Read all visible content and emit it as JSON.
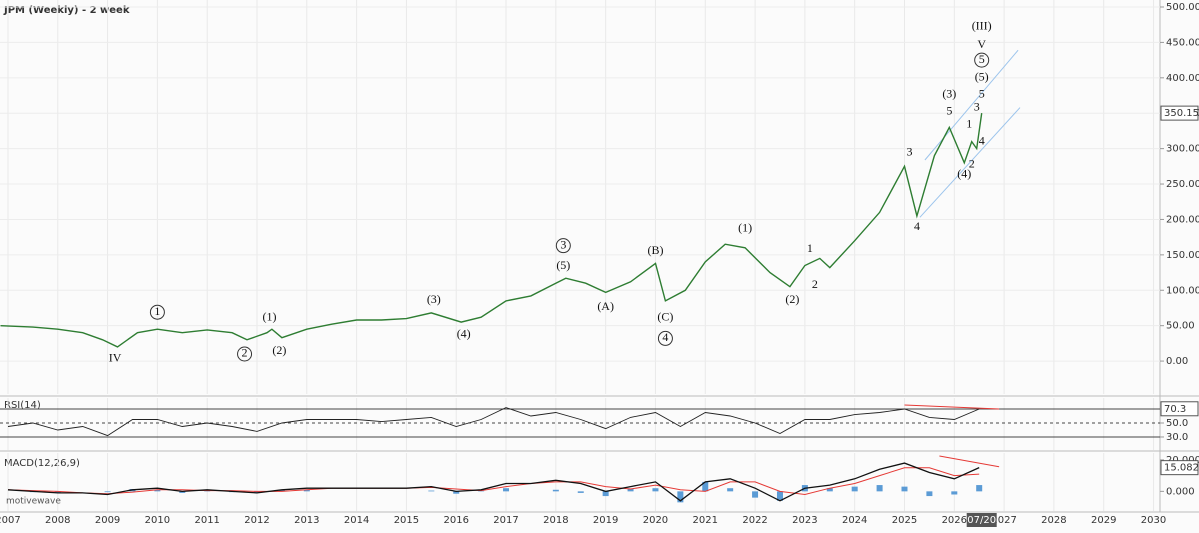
{
  "chart_data": [
    {
      "type": "line",
      "title": "JPM (Weekly) - 2 week",
      "color": "#2e7d32",
      "x": [
        2006.85,
        2007.5,
        2008.0,
        2008.5,
        2008.9,
        2009.2,
        2009.6,
        2010.0,
        2010.5,
        2011.0,
        2011.5,
        2011.8,
        2012.2,
        2012.3,
        2012.5,
        2013.0,
        2013.5,
        2014.0,
        2014.5,
        2015.0,
        2015.5,
        2016.1,
        2016.5,
        2017.0,
        2017.5,
        2018.0,
        2018.2,
        2018.6,
        2019.0,
        2019.5,
        2020.0,
        2020.2,
        2020.6,
        2021.0,
        2021.4,
        2021.8,
        2022.3,
        2022.7,
        2023.0,
        2023.3,
        2023.5,
        2024.0,
        2024.5,
        2025.0,
        2025.25,
        2025.6,
        2025.9,
        2026.2,
        2026.35,
        2026.45,
        2026.55
      ],
      "values": [
        50,
        48,
        45,
        40,
        30,
        20,
        40,
        45,
        40,
        44,
        40,
        30,
        40,
        45,
        33,
        45,
        52,
        58,
        58,
        60,
        68,
        55,
        62,
        85,
        92,
        110,
        117,
        110,
        97,
        112,
        138,
        85,
        100,
        140,
        165,
        160,
        125,
        105,
        135,
        145,
        132,
        170,
        210,
        275,
        205,
        290,
        330,
        280,
        310,
        300,
        350.15
      ],
      "xlim": [
        2006.84,
        2030.13
      ],
      "xticks": [
        2007,
        2008,
        2009,
        2010,
        2011,
        2012,
        2013,
        2014,
        2015,
        2016,
        2017,
        2018,
        2019,
        2020,
        2021,
        2022,
        2023,
        2024,
        2025,
        2026,
        2027,
        2028,
        2029,
        2030
      ],
      "ylim": [
        -46.5,
        509.9
      ],
      "yticks": [
        {
          "value": 0,
          "label": "0.00"
        },
        {
          "value": 50,
          "label": "50.00"
        },
        {
          "value": 100,
          "label": "100.00"
        },
        {
          "value": 150,
          "label": "150.00"
        },
        {
          "value": 200,
          "label": "200.00"
        },
        {
          "value": 250,
          "label": "250.00"
        },
        {
          "value": 300,
          "label": "300.00"
        },
        {
          "value": 350,
          "label": "350.00"
        },
        {
          "value": 400,
          "label": "400.00"
        },
        {
          "value": 450,
          "label": "450.00"
        },
        {
          "value": 500,
          "label": "500.00"
        }
      ],
      "grid": true,
      "last_value": 350.15,
      "date_marker": {
        "value": 2026.55,
        "label": "07/20"
      },
      "trendlines": [
        {
          "x": [
            2025.41,
            2027.28
          ],
          "values": [
            284,
            439
          ],
          "color": "#9cc4ec"
        },
        {
          "x": [
            2025.31,
            2027.32
          ],
          "values": [
            203,
            358
          ],
          "color": "#9cc4ec"
        }
      ],
      "annotations": [
        {
          "x": 2026.55,
          "y": 472,
          "text": "(III)",
          "circled": false
        },
        {
          "x": 2026.55,
          "y": 446,
          "text": "V",
          "circled": false
        },
        {
          "x": 2026.55,
          "y": 425,
          "text": "5",
          "circled": true
        },
        {
          "x": 2026.55,
          "y": 400,
          "text": "(5)",
          "circled": false
        },
        {
          "x": 2026.55,
          "y": 376,
          "text": "5",
          "circled": false
        },
        {
          "x": 2026.45,
          "y": 358,
          "text": "3",
          "circled": false
        },
        {
          "x": 2026.3,
          "y": 334,
          "text": "1",
          "circled": false
        },
        {
          "x": 2026.55,
          "y": 310,
          "text": "4",
          "circled": false
        },
        {
          "x": 2026.35,
          "y": 277,
          "text": "2",
          "circled": false
        },
        {
          "x": 2026.2,
          "y": 263,
          "text": "(4)",
          "circled": false
        },
        {
          "x": 2025.9,
          "y": 376,
          "text": "(3)",
          "circled": false
        },
        {
          "x": 2025.9,
          "y": 352,
          "text": "5",
          "circled": false
        },
        {
          "x": 2025.1,
          "y": 294,
          "text": "3",
          "circled": false
        },
        {
          "x": 2025.25,
          "y": 189,
          "text": "4",
          "circled": false
        },
        {
          "x": 2023.1,
          "y": 158,
          "text": "1",
          "circled": false
        },
        {
          "x": 2023.2,
          "y": 107,
          "text": "2",
          "circled": false
        },
        {
          "x": 2022.75,
          "y": 86,
          "text": "(2)",
          "circled": false
        },
        {
          "x": 2021.8,
          "y": 187,
          "text": "(1)",
          "circled": false
        },
        {
          "x": 2020.0,
          "y": 155,
          "text": "(B)",
          "circled": false
        },
        {
          "x": 2020.2,
          "y": 61,
          "text": "(C)",
          "circled": false
        },
        {
          "x": 2020.2,
          "y": 32,
          "text": "4",
          "circled": true
        },
        {
          "x": 2019.0,
          "y": 76,
          "text": "(A)",
          "circled": false
        },
        {
          "x": 2018.15,
          "y": 163,
          "text": "3",
          "circled": true
        },
        {
          "x": 2018.15,
          "y": 134,
          "text": "(5)",
          "circled": false
        },
        {
          "x": 2015.55,
          "y": 86,
          "text": "(3)",
          "circled": false
        },
        {
          "x": 2016.15,
          "y": 37,
          "text": "(4)",
          "circled": false
        },
        {
          "x": 2012.25,
          "y": 61,
          "text": "(1)",
          "circled": false
        },
        {
          "x": 2012.45,
          "y": 14,
          "text": "(2)",
          "circled": false
        },
        {
          "x": 2010.0,
          "y": 69,
          "text": "1",
          "circled": true
        },
        {
          "x": 2011.75,
          "y": 10,
          "text": "2",
          "circled": true
        },
        {
          "x": 2009.15,
          "y": 3,
          "text": "IV",
          "circled": false
        }
      ]
    },
    {
      "type": "line",
      "title": "RSI(14)",
      "color": "#222222",
      "x": [
        2007,
        2007.5,
        2008,
        2008.5,
        2009,
        2009.5,
        2010,
        2010.5,
        2011,
        2011.5,
        2012,
        2012.5,
        2013,
        2013.5,
        2014,
        2014.5,
        2015,
        2015.5,
        2016,
        2016.5,
        2017,
        2017.5,
        2018,
        2018.5,
        2019,
        2019.5,
        2020,
        2020.5,
        2021,
        2021.5,
        2022,
        2022.5,
        2023,
        2023.5,
        2024,
        2024.5,
        2025,
        2025.5,
        2026,
        2026.5
      ],
      "values": [
        45,
        50,
        40,
        45,
        32,
        55,
        55,
        45,
        50,
        45,
        38,
        50,
        55,
        55,
        55,
        52,
        55,
        58,
        45,
        55,
        72,
        60,
        65,
        55,
        42,
        58,
        65,
        45,
        65,
        60,
        50,
        35,
        55,
        55,
        62,
        65,
        70,
        58,
        55,
        70
      ],
      "ylim": [
        11.4,
        85.7
      ],
      "yticks": [
        {
          "value": 30,
          "label": "30.0"
        },
        {
          "value": 50,
          "label": "50.0"
        }
      ],
      "levels": [
        30,
        50,
        70
      ],
      "last_value": 70.3,
      "trendlines": [
        {
          "x": [
            2025.0,
            2026.9
          ],
          "values": [
            75.7,
            70
          ],
          "color": "#e53935"
        }
      ]
    },
    {
      "type": "macd",
      "title": "MACD(12,26,9)",
      "watermark": "motivewave",
      "color": "#111111",
      "signal_color": "#e53935",
      "histogram_color": "#5b9bd5",
      "x": [
        2007,
        2007.5,
        2008,
        2008.5,
        2009,
        2009.5,
        2010,
        2010.5,
        2011,
        2011.5,
        2012,
        2012.5,
        2013,
        2013.5,
        2014,
        2014.5,
        2015,
        2015.5,
        2016,
        2016.5,
        2017,
        2017.5,
        2018,
        2018.5,
        2019,
        2019.5,
        2020,
        2020.5,
        2021,
        2021.5,
        2022,
        2022.5,
        2023,
        2023.5,
        2024,
        2024.5,
        2025,
        2025.5,
        2026,
        2026.5
      ],
      "values": [
        1,
        0,
        -1,
        -1,
        -2,
        1,
        2,
        0,
        1,
        0,
        -1,
        1,
        2,
        2,
        2,
        2,
        2,
        3,
        0,
        1,
        5,
        5,
        7,
        5,
        0,
        3,
        6,
        -6,
        6,
        8,
        2,
        -6,
        2,
        4,
        8,
        14,
        18,
        12,
        8,
        15.082
      ],
      "signal": [
        1,
        0.5,
        0,
        -1,
        -1.5,
        -0.5,
        1,
        1,
        0.5,
        0.5,
        0,
        0,
        1,
        2,
        2,
        2,
        2,
        2.5,
        1.5,
        0.5,
        3,
        5,
        6,
        6,
        3,
        1.5,
        4,
        1,
        0,
        6,
        6,
        0,
        -2,
        2,
        5,
        10,
        15,
        15,
        10,
        11
      ],
      "histogram": [
        0,
        -0.5,
        -1,
        0,
        -0.5,
        1.5,
        1,
        -1,
        0.5,
        -0.5,
        -1,
        1,
        1,
        0,
        0,
        0,
        0,
        0.5,
        -1.5,
        0.5,
        2,
        0,
        1,
        -1,
        -3,
        1.5,
        2,
        -7,
        6,
        2,
        -4,
        -6,
        4,
        2,
        3,
        4,
        3,
        -3,
        -2,
        4
      ],
      "ylim": [
        -12.5,
        24.4
      ],
      "yticks": [
        {
          "value": 0,
          "label": "0.000"
        },
        {
          "value": 20,
          "label": "20.000"
        }
      ],
      "last_value": 15.082,
      "trendlines": [
        {
          "x": [
            2025.7,
            2026.9
          ],
          "values": [
            22.5,
            15.6
          ],
          "color": "#e53935"
        }
      ]
    }
  ]
}
